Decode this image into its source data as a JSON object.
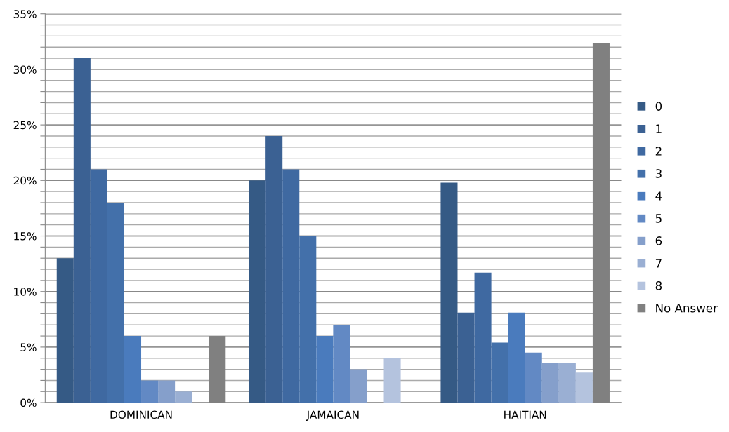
{
  "chart_data": {
    "type": "bar",
    "categories": [
      "DOMINICAN",
      "JAMAICAN",
      "HAITIAN"
    ],
    "series": [
      {
        "name": "0",
        "color": "#355a85",
        "values": [
          13,
          20,
          19.8
        ]
      },
      {
        "name": "1",
        "color": "#3b6193",
        "values": [
          31,
          24,
          8.1
        ]
      },
      {
        "name": "2",
        "color": "#3f69a1",
        "values": [
          21,
          21,
          11.7
        ]
      },
      {
        "name": "3",
        "color": "#4370aa",
        "values": [
          18,
          15,
          5.4
        ]
      },
      {
        "name": "4",
        "color": "#4a7bbd",
        "values": [
          6,
          6,
          8.1
        ]
      },
      {
        "name": "5",
        "color": "#6289c4",
        "values": [
          2,
          7,
          4.5
        ]
      },
      {
        "name": "6",
        "color": "#859fcb",
        "values": [
          2,
          3,
          3.6
        ]
      },
      {
        "name": "7",
        "color": "#9aafd3",
        "values": [
          1,
          0,
          3.6
        ]
      },
      {
        "name": "8",
        "color": "#b4c3de",
        "values": [
          0,
          4,
          2.7
        ]
      },
      {
        "name": "No Answer",
        "color": "#808080",
        "values": [
          6,
          0,
          32.4
        ]
      }
    ],
    "ylim": [
      0,
      35
    ],
    "yticks": [
      {
        "value": 0,
        "label": "0%"
      },
      {
        "value": 1,
        "label": null
      },
      {
        "value": 2,
        "label": null
      },
      {
        "value": 3,
        "label": null
      },
      {
        "value": 4,
        "label": null
      },
      {
        "value": 5,
        "label": "5%"
      },
      {
        "value": 6,
        "label": null
      },
      {
        "value": 7,
        "label": null
      },
      {
        "value": 8,
        "label": null
      },
      {
        "value": 9,
        "label": null
      },
      {
        "value": 10,
        "label": "10%"
      },
      {
        "value": 11,
        "label": null
      },
      {
        "value": 12,
        "label": null
      },
      {
        "value": 13,
        "label": null
      },
      {
        "value": 14,
        "label": null
      },
      {
        "value": 15,
        "label": "15%"
      },
      {
        "value": 16,
        "label": null
      },
      {
        "value": 17,
        "label": null
      },
      {
        "value": 18,
        "label": null
      },
      {
        "value": 19,
        "label": null
      },
      {
        "value": 20,
        "label": "20%"
      },
      {
        "value": 21,
        "label": null
      },
      {
        "value": 22,
        "label": null
      },
      {
        "value": 23,
        "label": null
      },
      {
        "value": 24,
        "label": null
      },
      {
        "value": 25,
        "label": "25%"
      },
      {
        "value": 26,
        "label": null
      },
      {
        "value": 27,
        "label": null
      },
      {
        "value": 28,
        "label": null
      },
      {
        "value": 29,
        "label": null
      },
      {
        "value": 30,
        "label": "30%"
      },
      {
        "value": 31,
        "label": null
      },
      {
        "value": 32,
        "label": null
      },
      {
        "value": 33,
        "label": null
      },
      {
        "value": 34,
        "label": null
      },
      {
        "value": 35,
        "label": "35%"
      }
    ],
    "grid": "y",
    "legend": "right"
  }
}
